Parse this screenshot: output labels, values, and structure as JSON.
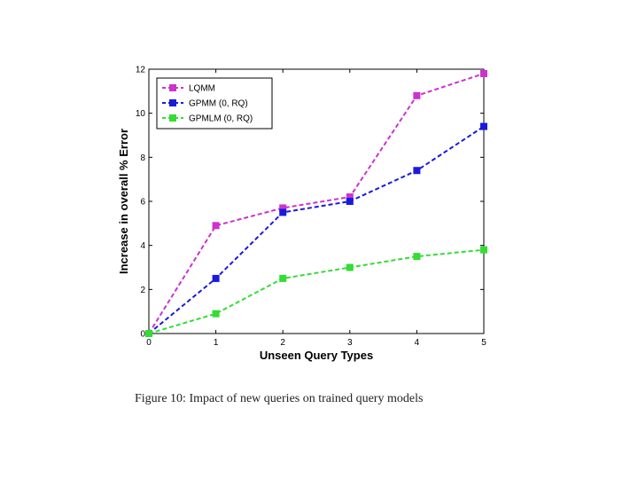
{
  "caption": "Figure 10: Impact of new queries on trained query models",
  "chart_data": {
    "type": "line",
    "xlabel": "Unseen Query Types",
    "ylabel": "Increase in overall % Error",
    "xlim": [
      0,
      5
    ],
    "ylim": [
      0,
      12
    ],
    "x_ticks": [
      0,
      1,
      2,
      3,
      4,
      5
    ],
    "y_ticks": [
      0,
      2,
      4,
      6,
      8,
      10,
      12
    ],
    "grid": false,
    "legend_position": "top-left",
    "x": [
      0,
      1,
      2,
      3,
      4,
      5
    ],
    "series": [
      {
        "name": "LQMM",
        "color": "#cc33cc",
        "marker": "square",
        "line_style": "dashed",
        "values": [
          0,
          4.9,
          5.7,
          6.2,
          10.8,
          11.8
        ]
      },
      {
        "name": "GPMM (0, RQ)",
        "color": "#1a1add",
        "marker": "square",
        "line_style": "dashed",
        "values": [
          0,
          2.5,
          5.5,
          6.0,
          7.4,
          9.4
        ]
      },
      {
        "name": "GPMLM (0, RQ)",
        "color": "#33dd33",
        "marker": "square",
        "line_style": "dashed",
        "values": [
          0,
          0.9,
          2.5,
          3.0,
          3.5,
          3.8
        ]
      }
    ]
  }
}
